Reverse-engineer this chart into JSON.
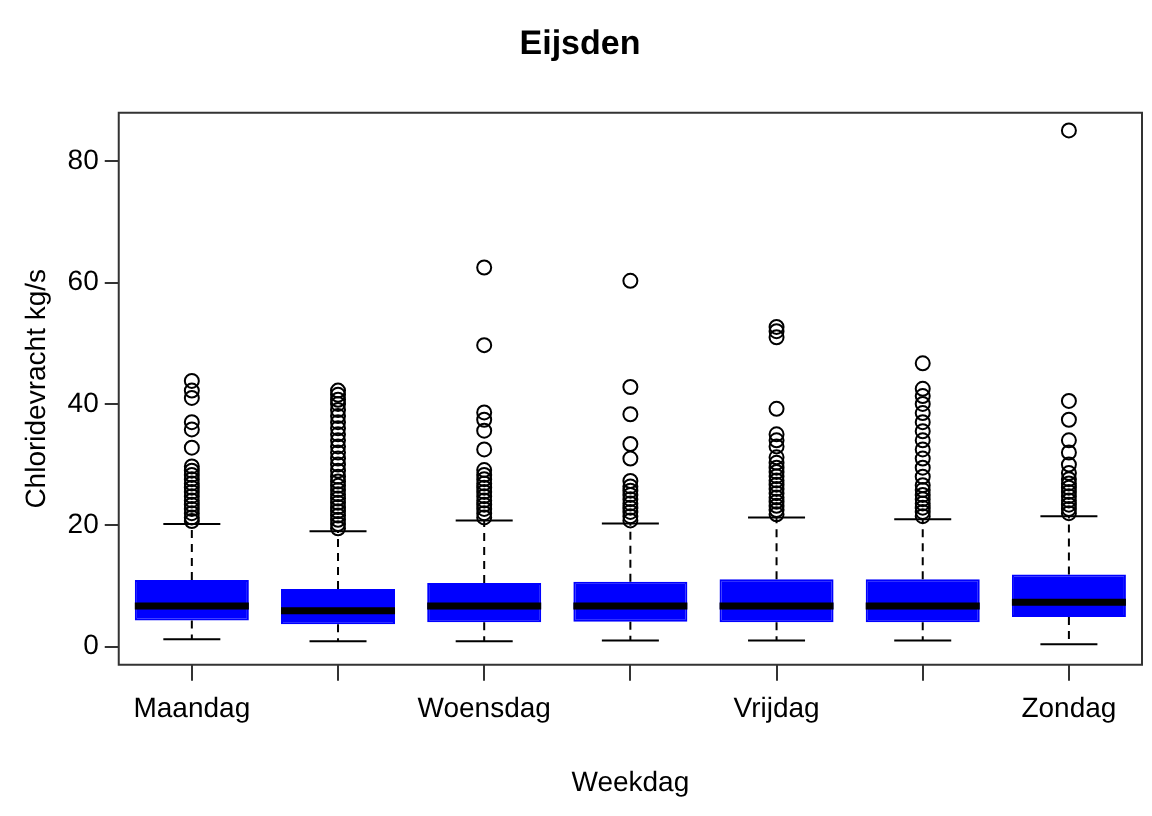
{
  "chart_data": {
    "type": "box",
    "title": "Eijsden",
    "xlabel": "Weekdag",
    "ylabel": "Chloridevracht kg/s",
    "categories": [
      "Maandag",
      null,
      "Woensdag",
      null,
      "Vrijdag",
      null,
      "Zondag"
    ],
    "ylim": [
      -3,
      88
    ],
    "yticks": [
      0,
      20,
      40,
      60,
      80
    ],
    "grid": false,
    "legend": false,
    "series": [
      {
        "color": "#0000ff",
        "boxes": [
          {
            "low": 1.2,
            "q1": 4.3,
            "median": 6.7,
            "q3": 11,
            "high": 20.2,
            "outliers": [
              20.7,
              21.3,
              22,
              22.7,
              23.4,
              24.1,
              24.8,
              25.5,
              26.2,
              26.9,
              27.6,
              28.3,
              29,
              29.7,
              32.8,
              35.8,
              37,
              41,
              42.2,
              43.8
            ]
          },
          {
            "low": 0.9,
            "q1": 3.7,
            "median": 5.9,
            "q3": 9.5,
            "high": 19,
            "outliers": [
              19.5,
              20.2,
              20.9,
              21.6,
              22.3,
              23,
              23.7,
              24.4,
              25.1,
              25.8,
              26.5,
              27.2,
              28,
              29,
              30,
              31,
              32,
              33,
              34,
              35,
              36,
              37,
              38,
              39,
              40,
              40.7,
              41.5,
              42.2
            ]
          },
          {
            "low": 0.9,
            "q1": 4,
            "median": 6.7,
            "q3": 10.5,
            "high": 20.8,
            "outliers": [
              21.3,
              22,
              22.7,
              23.4,
              24.1,
              24.8,
              25.5,
              26.2,
              26.9,
              27.6,
              28.3,
              29.1,
              32.5,
              35.6,
              37.4,
              38.6,
              49.7,
              62.5
            ]
          },
          {
            "low": 1,
            "q1": 4.1,
            "median": 6.7,
            "q3": 10.7,
            "high": 20.3,
            "outliers": [
              20.8,
              21.5,
              22.2,
              22.9,
              23.6,
              24.3,
              25,
              25.7,
              26.4,
              27.3,
              31,
              33.4,
              38.3,
              42.8,
              60.3
            ]
          },
          {
            "low": 1,
            "q1": 4,
            "median": 6.7,
            "q3": 11.1,
            "high": 21.3,
            "outliers": [
              21.8,
              22.5,
              23.2,
              23.9,
              24.6,
              25.3,
              26,
              26.7,
              27.4,
              28.1,
              28.8,
              29.5,
              30.3,
              31.2,
              33,
              34,
              35,
              39.2,
              51,
              52,
              52.7
            ]
          },
          {
            "low": 1,
            "q1": 4,
            "median": 6.7,
            "q3": 11.1,
            "high": 21,
            "outliers": [
              21.5,
              22.2,
              22.9,
              23.6,
              24.3,
              25,
              25.8,
              26.6,
              28,
              29.5,
              31,
              32.5,
              34,
              35.5,
              37,
              38.5,
              40,
              41.3,
              42.5,
              46.7
            ]
          },
          {
            "low": 0.4,
            "q1": 4.9,
            "median": 7.3,
            "q3": 11.9,
            "high": 21.5,
            "outliers": [
              22,
              22.7,
              23.4,
              24.1,
              24.8,
              25.5,
              26.2,
              26.9,
              27.6,
              28.6,
              30,
              32,
              34,
              37.4,
              40.5,
              85.1
            ]
          }
        ]
      }
    ]
  }
}
